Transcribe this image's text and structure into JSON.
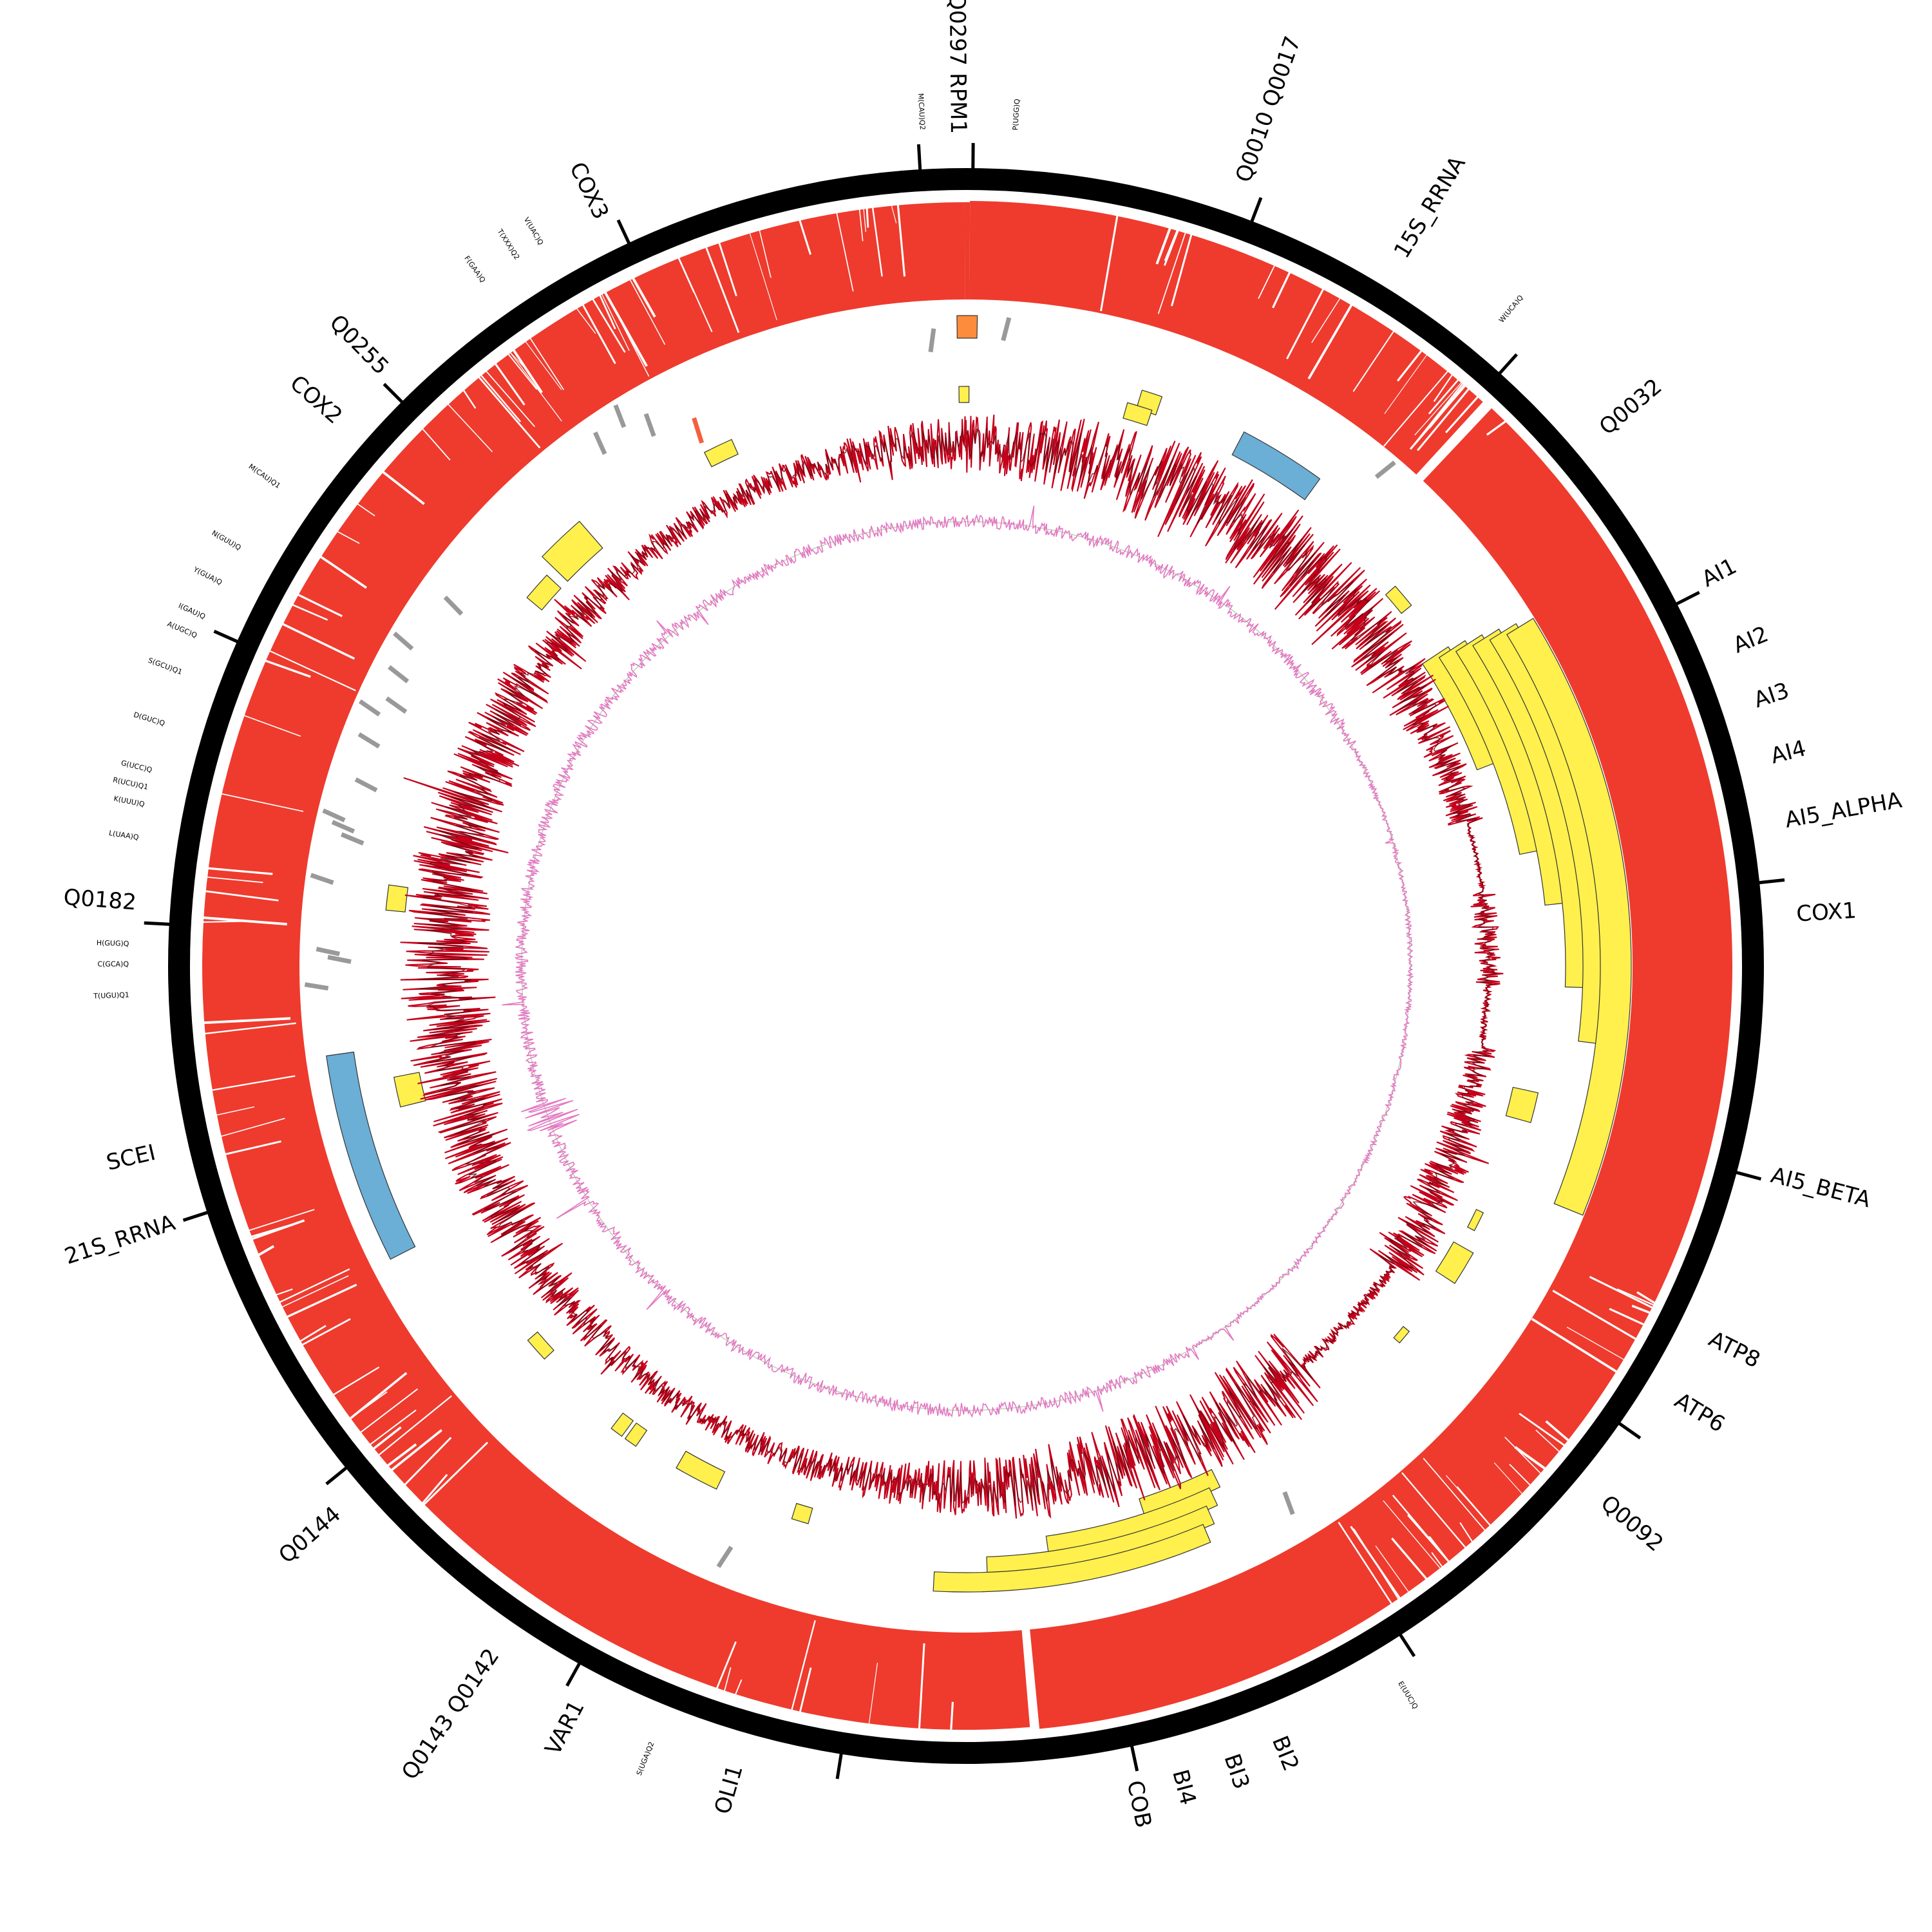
{
  "gene_labels": [
    "Q0297 RPM1",
    "Q0010 Q0017",
    "15S_RRNA",
    "Q0032",
    "AI1",
    "AI2",
    "AI3",
    "AI4",
    "AI5_ALPHA",
    "COX1",
    "AI5_BETA",
    "ATP8",
    "ATP6",
    "Q0092",
    "BI2",
    "BI3",
    "BI4",
    "COB",
    "OLI1",
    "VAR1",
    "Q0143 Q0142",
    "Q0144",
    "21S_RRNA",
    "SCEI",
    "Q0182",
    "COX2",
    "Q0255",
    "COX3"
  ],
  "trna_labels": [
    "M(CAU)Q2",
    "P(UGG)Q",
    "W(UCA)Q",
    "E(UUC)Q",
    "S(UGA)Q2",
    "T(UGU)Q1",
    "C(GCA)Q",
    "H(GUG)Q",
    "L(UAA)Q",
    "K(UUU)Q",
    "R(UCU)Q1",
    "G(UCC)Q",
    "D(GUC)Q",
    "S(GCU)Q1",
    "A(UGC)Q",
    "I(GAU)Q",
    "Y(GUA)Q",
    "N(GUU)Q",
    "M(CAU)Q1",
    "F(GAA)Q",
    "T(XXX)Q2",
    "V(UAC)Q"
  ],
  "colors": {
    "ideogram": "#000000",
    "coverage": "#ee3b2e",
    "intron": "#fff04d",
    "rrna": "#6baed6",
    "trna": "#999999",
    "highlight": "#fd8d3c",
    "signal_line": "#c4001a",
    "signal_dark": "#67000d",
    "gc_line": "#e377c2",
    "gc_faint": "#b8d8b0"
  }
}
